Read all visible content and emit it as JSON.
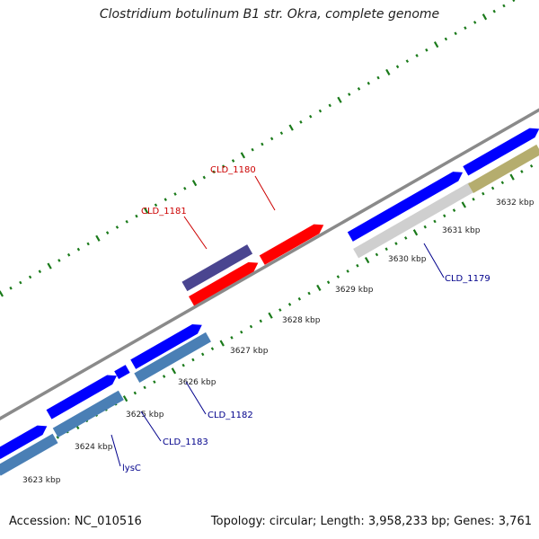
{
  "title": "Clostridium botulinum B1 str. Okra, complete genome",
  "footer": {
    "accession": "Accession: NC_010516",
    "topology": "Topology: circular; Length: 3,958,233 bp; Genes: 3,761"
  },
  "colors": {
    "backbone": "#8a8a8a",
    "forward_cds": "#0000ff",
    "reverse_cds": "#4a7fb5",
    "grey_feature": "#cfcfcf",
    "olive_feature": "#b5ad6e",
    "rna_feature": "#ff0000",
    "dark_feature": "#4a4590",
    "tick": "#1a7a1a",
    "label_red": "#cc0000",
    "label_blue": "#00008b"
  },
  "ticks": [
    {
      "label": "3623 kbp"
    },
    {
      "label": "3624 kbp"
    },
    {
      "label": "3625 kbp"
    },
    {
      "label": "3626 kbp"
    },
    {
      "label": "3627 kbp"
    },
    {
      "label": "3628 kbp"
    },
    {
      "label": "3629 kbp"
    },
    {
      "label": "3630 kbp"
    },
    {
      "label": "3631 kbp"
    },
    {
      "label": "3632 kbp"
    }
  ],
  "gene_labels": [
    {
      "text": "CLD_1180",
      "color": "red"
    },
    {
      "text": "CLD_1181",
      "color": "red"
    },
    {
      "text": "CLD_1179",
      "color": "blue"
    },
    {
      "text": "CLD_1182",
      "color": "blue"
    },
    {
      "text": "CLD_1183",
      "color": "blue"
    },
    {
      "text": "lysC",
      "color": "blue"
    }
  ]
}
